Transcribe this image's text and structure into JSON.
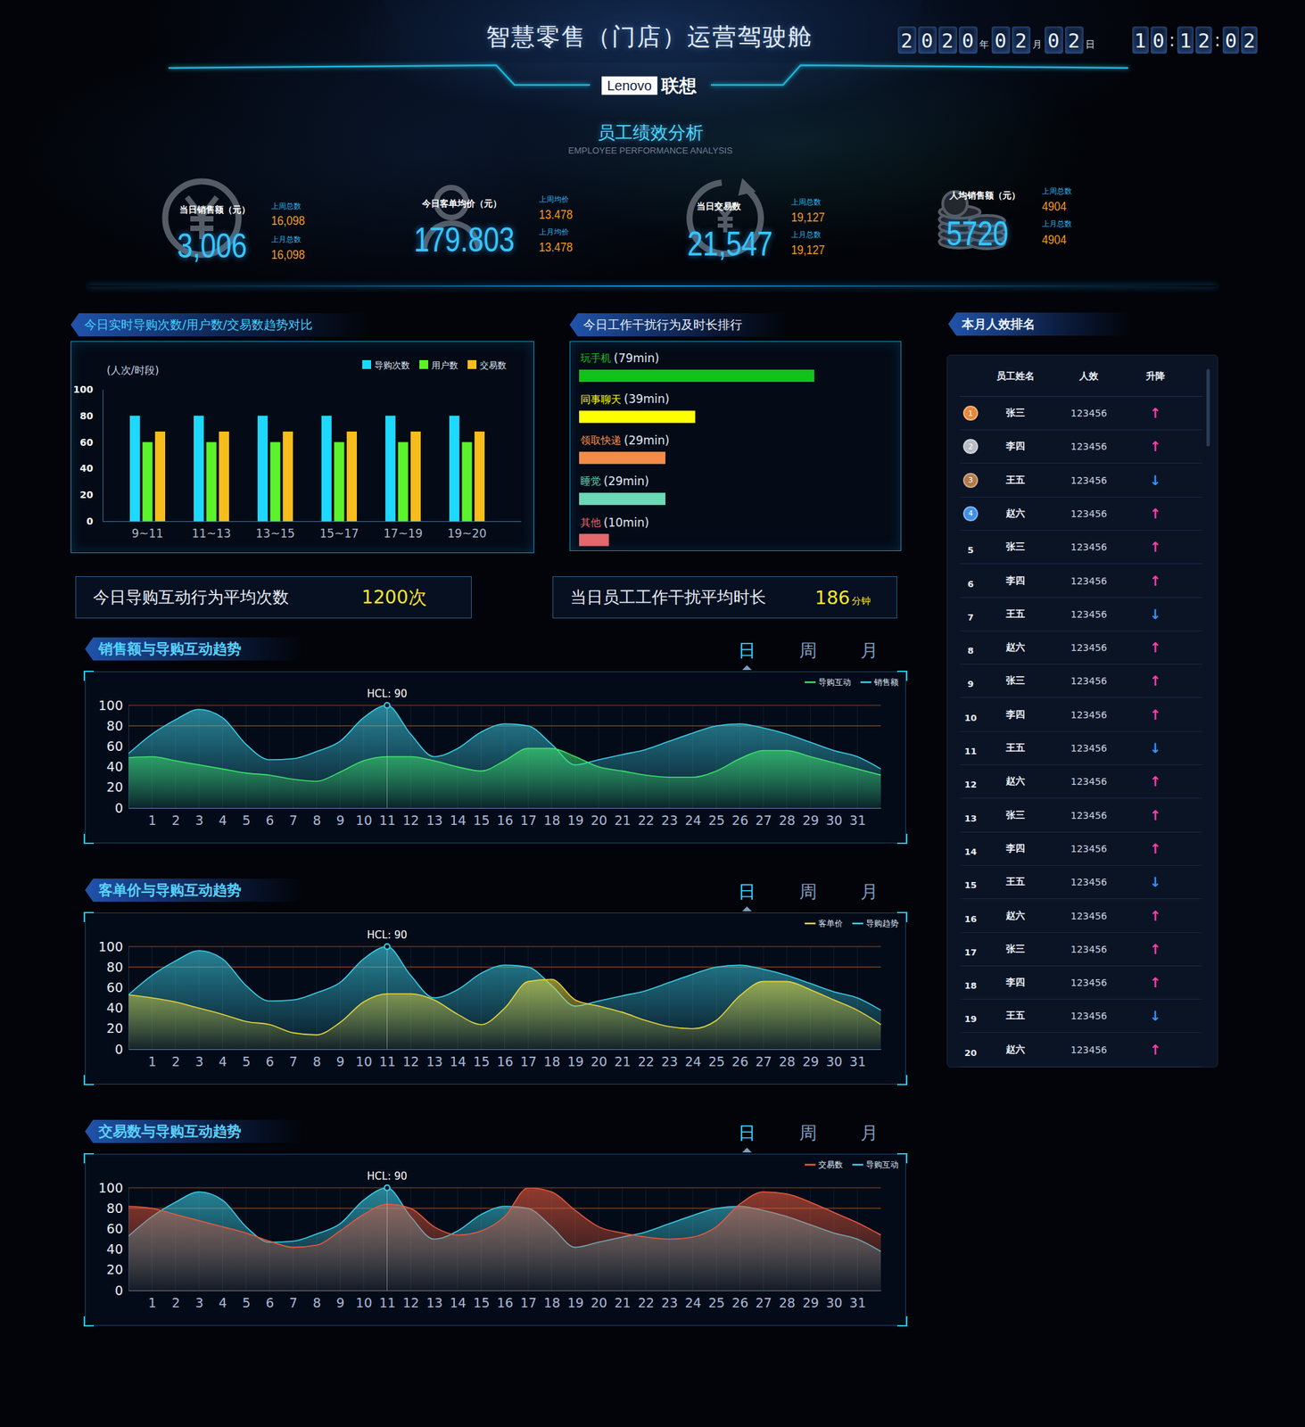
{
  "header": {
    "title": "智慧零售（门店）运营驾驶舱",
    "date": "2020年02月02日",
    "time": "10:12:02",
    "brand": "Lenovo",
    "brand_cn": "联想",
    "section_title": "员工绩效分析",
    "section_subtitle": "EMPLOYEE PERFORMANCE ANALYSIS"
  },
  "kpis": [
    {
      "label": "当日销售额（元）",
      "value": "3,006",
      "compare": [
        {
          "label": "上周总数",
          "value": "16,098"
        },
        {
          "label": "上月总数",
          "value": "16,098"
        }
      ]
    },
    {
      "label": "今日客单均价（元）",
      "value": "179.803",
      "compare": [
        {
          "label": "上周均价",
          "value": "13.478"
        },
        {
          "label": "上月均价",
          "value": "13.478"
        }
      ]
    },
    {
      "label": "当日交易数",
      "value": "21,547",
      "compare": [
        {
          "label": "上周总数",
          "value": "19,127"
        },
        {
          "label": "上月总数",
          "value": "19,127"
        }
      ]
    },
    {
      "label": "人均销售额（元）",
      "value": "5720",
      "compare": [
        {
          "label": "上周总数",
          "value": "4904"
        },
        {
          "label": "上月总数",
          "value": "4904"
        }
      ]
    }
  ],
  "stats": [
    {
      "label": "今日导购互动行为平均次数",
      "value": "1200次"
    },
    {
      "label": "当日员工工作干扰平均时长",
      "value": "186",
      "unit": "分钟"
    }
  ],
  "ranking": {
    "title": "本月人效排名",
    "columns": [
      "员工姓名",
      "人效",
      "升降"
    ],
    "rows": [
      [
        1,
        "张三",
        "123456",
        "↑"
      ],
      [
        2,
        "李四",
        "123456",
        "↑"
      ],
      [
        3,
        "王五",
        "123456",
        "↓"
      ],
      [
        4,
        "赵六",
        "123456",
        "↑"
      ],
      [
        5,
        "张三",
        "123456",
        "↑"
      ],
      [
        6,
        "李四",
        "123456",
        "↑"
      ],
      [
        7,
        "王五",
        "123456",
        "↓"
      ],
      [
        8,
        "赵六",
        "123456",
        "↑"
      ],
      [
        9,
        "张三",
        "123456",
        "↑"
      ],
      [
        10,
        "李四",
        "123456",
        "↑"
      ],
      [
        11,
        "王五",
        "123456",
        "↓"
      ],
      [
        12,
        "赵六",
        "123456",
        "↑"
      ],
      [
        13,
        "张三",
        "123456",
        "↑"
      ],
      [
        14,
        "李四",
        "123456",
        "↑"
      ],
      [
        15,
        "王五",
        "123456",
        "↓"
      ],
      [
        16,
        "赵六",
        "123456",
        "↑"
      ],
      [
        17,
        "张三",
        "123456",
        "↑"
      ],
      [
        18,
        "李四",
        "123456",
        "↑"
      ],
      [
        19,
        "王五",
        "123456",
        "↓"
      ],
      [
        20,
        "赵六",
        "123456",
        "↑"
      ]
    ]
  },
  "chart_data": [
    {
      "type": "bar",
      "title": "今日实时导购次数/用户数/交易数趋势对比",
      "y_label": "(人次/时段)",
      "categories": [
        "9~11",
        "11~13",
        "13~15",
        "15~17",
        "17~19",
        "19~20"
      ],
      "series": [
        {
          "name": "导购次数",
          "color": "#1ed8ff",
          "values": [
            80,
            80,
            80,
            80,
            80,
            80
          ]
        },
        {
          "name": "用户数",
          "color": "#5cf22c",
          "values": [
            60,
            60,
            60,
            60,
            60,
            60
          ]
        },
        {
          "name": "交易数",
          "color": "#f7bd1d",
          "values": [
            68,
            68,
            68,
            68,
            68,
            68
          ]
        }
      ],
      "ylim": [
        0,
        100
      ],
      "yticks": [
        0,
        20,
        40,
        60,
        80,
        100
      ],
      "legend": "upper right",
      "grid": false
    },
    {
      "type": "bar",
      "orientation": "horizontal",
      "title": "今日工作干扰行为及时长排行",
      "categories": [
        "玩手机",
        "同事聊天",
        "领取快递",
        "睡觉",
        "其他"
      ],
      "values": [
        79,
        39,
        29,
        29,
        10
      ],
      "value_labels": [
        "(79min)",
        "(39min)",
        "(29min)",
        "(29min)",
        "(10min)"
      ],
      "colors": [
        "#12c21a",
        "#fcff00",
        "#f28c48",
        "#6bd8b6",
        "#e4686c"
      ],
      "xlim": [
        0,
        100
      ],
      "data_labels": true,
      "tick_labels": false
    },
    {
      "type": "area",
      "title": "销售额与导购互动趋势",
      "tabs": [
        "日",
        "周",
        "月"
      ],
      "x": [
        0,
        1,
        2,
        3,
        4,
        5,
        6,
        7,
        8,
        9,
        10,
        11,
        12,
        13,
        14,
        15,
        16,
        17,
        18,
        19,
        20,
        21,
        22,
        23,
        24,
        25,
        26,
        27,
        28,
        29,
        30,
        31,
        32
      ],
      "xlim": [
        0,
        32
      ],
      "xticks": [
        1,
        2,
        3,
        4,
        5,
        6,
        7,
        8,
        9,
        10,
        11,
        12,
        13,
        14,
        15,
        16,
        17,
        18,
        19,
        20,
        21,
        22,
        23,
        24,
        25,
        26,
        27,
        28,
        29,
        30,
        31
      ],
      "ylim": [
        0,
        100
      ],
      "yticks": [
        0,
        20,
        40,
        60,
        80,
        100
      ],
      "reference_lines": [
        100,
        80
      ],
      "grid": true,
      "legend": "upper right",
      "annotation": {
        "text": "HCL: 90",
        "x": 11,
        "y": 100
      },
      "series": [
        {
          "name": "导购互动",
          "color": "#3ee06b",
          "values": [
            49,
            50,
            46,
            42,
            38,
            34,
            32,
            28,
            26,
            35,
            46,
            50,
            50,
            46,
            40,
            36,
            46,
            58,
            58,
            50,
            40,
            36,
            32,
            30,
            30,
            36,
            48,
            56,
            56,
            50,
            44,
            38,
            32
          ]
        },
        {
          "name": "销售额",
          "color": "#3ccfe6",
          "values": [
            53,
            72,
            86,
            96,
            88,
            62,
            47,
            48,
            55,
            65,
            88,
            100,
            72,
            50,
            58,
            74,
            82,
            80,
            62,
            42,
            47,
            52,
            57,
            65,
            73,
            80,
            82,
            78,
            72,
            64,
            56,
            50,
            38
          ]
        }
      ]
    },
    {
      "type": "area",
      "title": "客单价与导购互动趋势",
      "tabs": [
        "日",
        "周",
        "月"
      ],
      "x": [
        0,
        1,
        2,
        3,
        4,
        5,
        6,
        7,
        8,
        9,
        10,
        11,
        12,
        13,
        14,
        15,
        16,
        17,
        18,
        19,
        20,
        21,
        22,
        23,
        24,
        25,
        26,
        27,
        28,
        29,
        30,
        31,
        32
      ],
      "xlim": [
        0,
        32
      ],
      "xticks": [
        1,
        2,
        3,
        4,
        5,
        6,
        7,
        8,
        9,
        10,
        11,
        12,
        13,
        14,
        15,
        16,
        17,
        18,
        19,
        20,
        21,
        22,
        23,
        24,
        25,
        26,
        27,
        28,
        29,
        30,
        31
      ],
      "ylim": [
        0,
        100
      ],
      "yticks": [
        0,
        20,
        40,
        60,
        80,
        100
      ],
      "reference_lines": [
        100,
        80
      ],
      "grid": true,
      "legend": "upper right",
      "annotation": {
        "text": "HCL: 90",
        "x": 11,
        "y": 100
      },
      "series": [
        {
          "name": "客单价",
          "color": "#e3d43c",
          "values": [
            53,
            50,
            46,
            40,
            34,
            27,
            24,
            16,
            14,
            26,
            46,
            54,
            54,
            48,
            34,
            24,
            40,
            66,
            68,
            48,
            42,
            36,
            28,
            22,
            20,
            28,
            52,
            66,
            66,
            58,
            48,
            38,
            24
          ]
        },
        {
          "name": "导购趋势",
          "color": "#3ccfe6",
          "values": [
            53,
            72,
            86,
            96,
            88,
            62,
            47,
            48,
            55,
            65,
            88,
            100,
            72,
            50,
            58,
            74,
            82,
            80,
            62,
            42,
            47,
            52,
            57,
            65,
            73,
            80,
            82,
            78,
            72,
            64,
            56,
            50,
            38
          ]
        }
      ]
    },
    {
      "type": "area",
      "title": "交易数与导购互动趋势",
      "tabs": [
        "日",
        "周",
        "月"
      ],
      "x": [
        0,
        1,
        2,
        3,
        4,
        5,
        6,
        7,
        8,
        9,
        10,
        11,
        12,
        13,
        14,
        15,
        16,
        17,
        18,
        19,
        20,
        21,
        22,
        23,
        24,
        25,
        26,
        27,
        28,
        29,
        30,
        31,
        32
      ],
      "xlim": [
        0,
        32
      ],
      "xticks": [
        1,
        2,
        3,
        4,
        5,
        6,
        7,
        8,
        9,
        10,
        11,
        12,
        13,
        14,
        15,
        16,
        17,
        18,
        19,
        20,
        21,
        22,
        23,
        24,
        25,
        26,
        27,
        28,
        29,
        30,
        31
      ],
      "ylim": [
        0,
        100
      ],
      "yticks": [
        0,
        20,
        40,
        60,
        80,
        100
      ],
      "reference_lines": [
        100,
        80
      ],
      "grid": true,
      "legend": "upper right",
      "annotation": {
        "text": "HCL: 90",
        "x": 11,
        "y": 100
      },
      "series": [
        {
          "name": "交易数",
          "color": "#e8593c",
          "values": [
            82,
            80,
            74,
            68,
            62,
            56,
            48,
            42,
            44,
            58,
            74,
            84,
            80,
            62,
            54,
            58,
            72,
            100,
            96,
            78,
            62,
            56,
            52,
            50,
            52,
            62,
            84,
            96,
            94,
            86,
            76,
            66,
            54
          ]
        },
        {
          "name": "导购互动",
          "color": "#3ccfe6",
          "values": [
            53,
            72,
            86,
            96,
            88,
            62,
            47,
            48,
            55,
            65,
            88,
            100,
            72,
            50,
            58,
            74,
            82,
            80,
            62,
            42,
            47,
            52,
            57,
            65,
            73,
            80,
            82,
            78,
            72,
            64,
            56,
            50,
            38
          ]
        }
      ]
    }
  ]
}
